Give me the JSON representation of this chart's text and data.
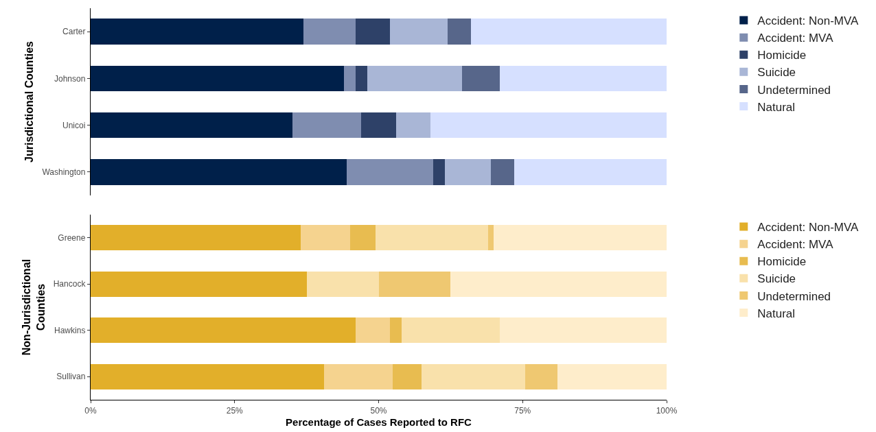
{
  "chart_data": [
    {
      "type": "bar",
      "orientation": "horizontal",
      "stacked": true,
      "ylabel": "Jurisdictional Counties",
      "categories": [
        "Carter",
        "Johnson",
        "Unicoi",
        "Washington"
      ],
      "series": [
        {
          "name": "Accident: Non-MVA",
          "color": "#00204a",
          "values": [
            37,
            44,
            35,
            44.5
          ]
        },
        {
          "name": "Accident: MVA",
          "color": "#7f8db0",
          "values": [
            9,
            2,
            12,
            15
          ]
        },
        {
          "name": "Homicide",
          "color": "#2e4168",
          "values": [
            6,
            2,
            6,
            2
          ]
        },
        {
          "name": "Suicide",
          "color": "#a9b6d6",
          "values": [
            10,
            16.5,
            6,
            8
          ]
        },
        {
          "name": "Undetermined",
          "color": "#57668a",
          "values": [
            4,
            6.5,
            0,
            4
          ]
        },
        {
          "name": "Natural",
          "color": "#d6e0ff",
          "values": [
            34,
            29,
            41,
            26.5
          ]
        }
      ],
      "xlim": [
        0,
        100
      ],
      "tick_labels": "y",
      "grid": false,
      "legend": "right"
    },
    {
      "type": "bar",
      "orientation": "horizontal",
      "stacked": true,
      "ylabel": "Non-Jurisdictional\nCounties",
      "xlabel": "Percentage of Cases Reported to RFC",
      "categories": [
        "Greene",
        "Hancock",
        "Hawkins",
        "Sullivan"
      ],
      "series": [
        {
          "name": "Accident: Non-MVA",
          "color": "#e2af2a",
          "values": [
            36.5,
            37.5,
            46,
            40.5
          ]
        },
        {
          "name": "Accident: MVA",
          "color": "#f5d38f",
          "values": [
            8.5,
            0,
            6,
            12
          ]
        },
        {
          "name": "Homicide",
          "color": "#e8bc50",
          "values": [
            4.5,
            0,
            2,
            5
          ]
        },
        {
          "name": "Suicide",
          "color": "#f9e1ab",
          "values": [
            19.5,
            12.5,
            17,
            18
          ]
        },
        {
          "name": "Undetermined",
          "color": "#efc871",
          "values": [
            1,
            12.5,
            0,
            5.5
          ]
        },
        {
          "name": "Natural",
          "color": "#feedcb",
          "values": [
            30,
            37.5,
            29,
            19
          ]
        }
      ],
      "xlim": [
        0,
        100
      ],
      "xticks": [
        {
          "value": 0,
          "label": "0%"
        },
        {
          "value": 25,
          "label": "25%"
        },
        {
          "value": 50,
          "label": "50%"
        },
        {
          "value": 75,
          "label": "75%"
        },
        {
          "value": 100,
          "label": "100%"
        }
      ],
      "grid": false,
      "legend": "right"
    }
  ]
}
